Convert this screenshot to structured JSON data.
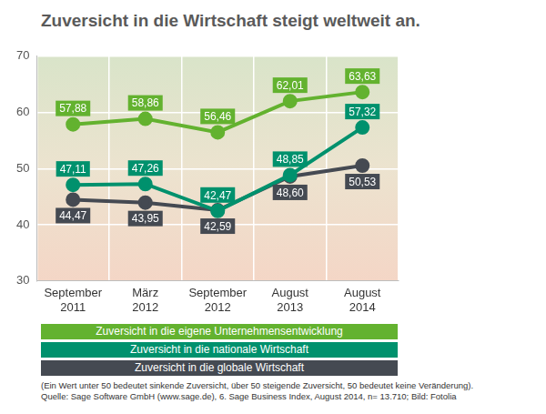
{
  "chart_data": {
    "type": "line",
    "title": "Zuversicht in die Wirtschaft steigt weltweit an.",
    "categories": [
      "September 2011",
      "März 2012",
      "September 2012",
      "August 2013",
      "August 2014"
    ],
    "series": [
      {
        "name": "Zuversicht in die eigene Unternehmensentwicklung",
        "color": "#63b22f",
        "values": [
          57.88,
          58.86,
          56.46,
          62.01,
          63.63
        ],
        "value_labels": [
          "57,88",
          "58,86",
          "56,46",
          "62,01",
          "63,63"
        ]
      },
      {
        "name": "Zuversicht in die nationale Wirtschaft",
        "color": "#00916d",
        "values": [
          47.11,
          47.26,
          42.47,
          48.85,
          57.32
        ],
        "value_labels": [
          "47,11",
          "47,26",
          "42,47",
          "48,85",
          "57,32"
        ]
      },
      {
        "name": "Zuversicht in die globale Wirtschaft",
        "color": "#454a52",
        "values": [
          44.47,
          43.95,
          42.59,
          48.6,
          50.53
        ],
        "value_labels": [
          "44,47",
          "43,95",
          "42,59",
          "48,60",
          "50,53"
        ]
      }
    ],
    "ylim": [
      30,
      70
    ],
    "yticks": [
      30,
      40,
      50,
      60,
      70
    ],
    "grid": true,
    "legend": "bottom",
    "data_labels": true,
    "marker": "circle",
    "annotations": [
      "(Ein Wert unter 50 bedeutet sinkende Zuversicht, über 50 steigende Zuversicht, 50 bedeutet keine Veränderung).",
      "Quelle: Sage Software GmbH (www.sage.de), 6. Sage Business Index, August 2014, n= 13.710; Bild: Fotolia"
    ]
  }
}
